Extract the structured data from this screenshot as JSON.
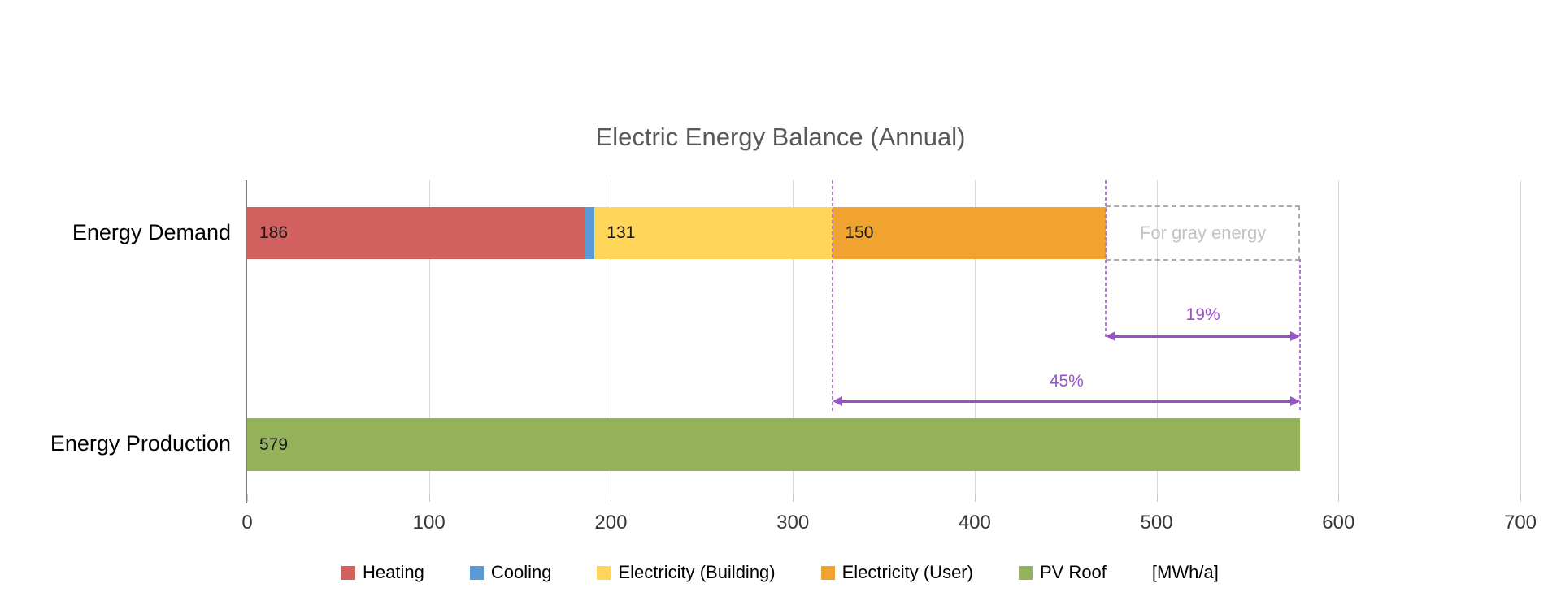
{
  "chart_data": {
    "type": "bar",
    "orientation": "horizontal-stacked",
    "title": "Electric Energy Balance (Annual)",
    "categories": [
      "Energy Demand",
      "Energy Production"
    ],
    "series": [
      {
        "name": "Heating",
        "color": "#D2605E",
        "values": [
          186,
          0
        ],
        "labels": [
          "186",
          null
        ]
      },
      {
        "name": "Cooling",
        "color": "#5B9BD5",
        "values": [
          5,
          0
        ],
        "labels": [
          null,
          null
        ]
      },
      {
        "name": "Electricity (Building)",
        "color": "#FFD55A",
        "values": [
          131,
          0
        ],
        "labels": [
          "131",
          null
        ]
      },
      {
        "name": "Electricity (User)",
        "color": "#F0A42F",
        "values": [
          150,
          0
        ],
        "labels": [
          "150",
          null
        ]
      },
      {
        "name": "PV Roof",
        "color": "#93B259",
        "values": [
          0,
          579
        ],
        "labels": [
          null,
          "579"
        ]
      }
    ],
    "xlim": [
      0,
      700
    ],
    "xticks": [
      0,
      100,
      200,
      300,
      400,
      500,
      600,
      700
    ],
    "unit_label": "[MWh/a]",
    "gray_box": {
      "label": "For gray energy",
      "from": 472,
      "to": 579
    },
    "guide_lines": [
      {
        "x": 322
      },
      {
        "x": 472
      },
      {
        "x": 579
      }
    ],
    "annotations": [
      {
        "label": "19%",
        "from": 472,
        "to": 579
      },
      {
        "label": "45%",
        "from": 322,
        "to": 579
      }
    ],
    "grid": true,
    "legend_position": "bottom"
  },
  "colors": {
    "grid": "#D9D9D9",
    "axis": "#7F7F7F",
    "title_text": "#595959",
    "annotation_purple": "#9753C6",
    "guide_purple": "#B07AD9",
    "gray_box_border": "#ABABAB",
    "gray_box_text": "#C3C3C3"
  }
}
